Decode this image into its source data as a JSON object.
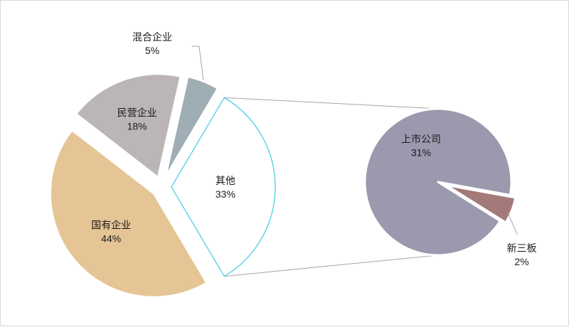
{
  "chart_data": {
    "type": "pie",
    "variant": "bar-of-pie",
    "title": "",
    "main_pie": {
      "slices": [
        {
          "label": "国有企业",
          "value": 44,
          "value_label": "44%",
          "color": "#e5c595",
          "stroke": "#ffffff"
        },
        {
          "label": "民营企业",
          "value": 18,
          "value_label": "18%",
          "color": "#bcb5b6",
          "stroke": "#ffffff"
        },
        {
          "label": "混合企业",
          "value": 5,
          "value_label": "5%",
          "color": "#9fadb5",
          "stroke": "#ffffff"
        },
        {
          "label": "其他",
          "value": 33,
          "value_label": "33%",
          "color": "#ffffff",
          "stroke": "#62d3ef"
        }
      ]
    },
    "secondary_pie": {
      "parent": "其他",
      "slices": [
        {
          "label": "上市公司",
          "value": 31,
          "value_label": "31%",
          "color": "#9a99ae"
        },
        {
          "label": "新三板",
          "value": 2,
          "value_label": "2%",
          "color": "#a37a79"
        }
      ]
    },
    "connector_color": "#a6a6a6",
    "grid": false,
    "legend": "none"
  }
}
